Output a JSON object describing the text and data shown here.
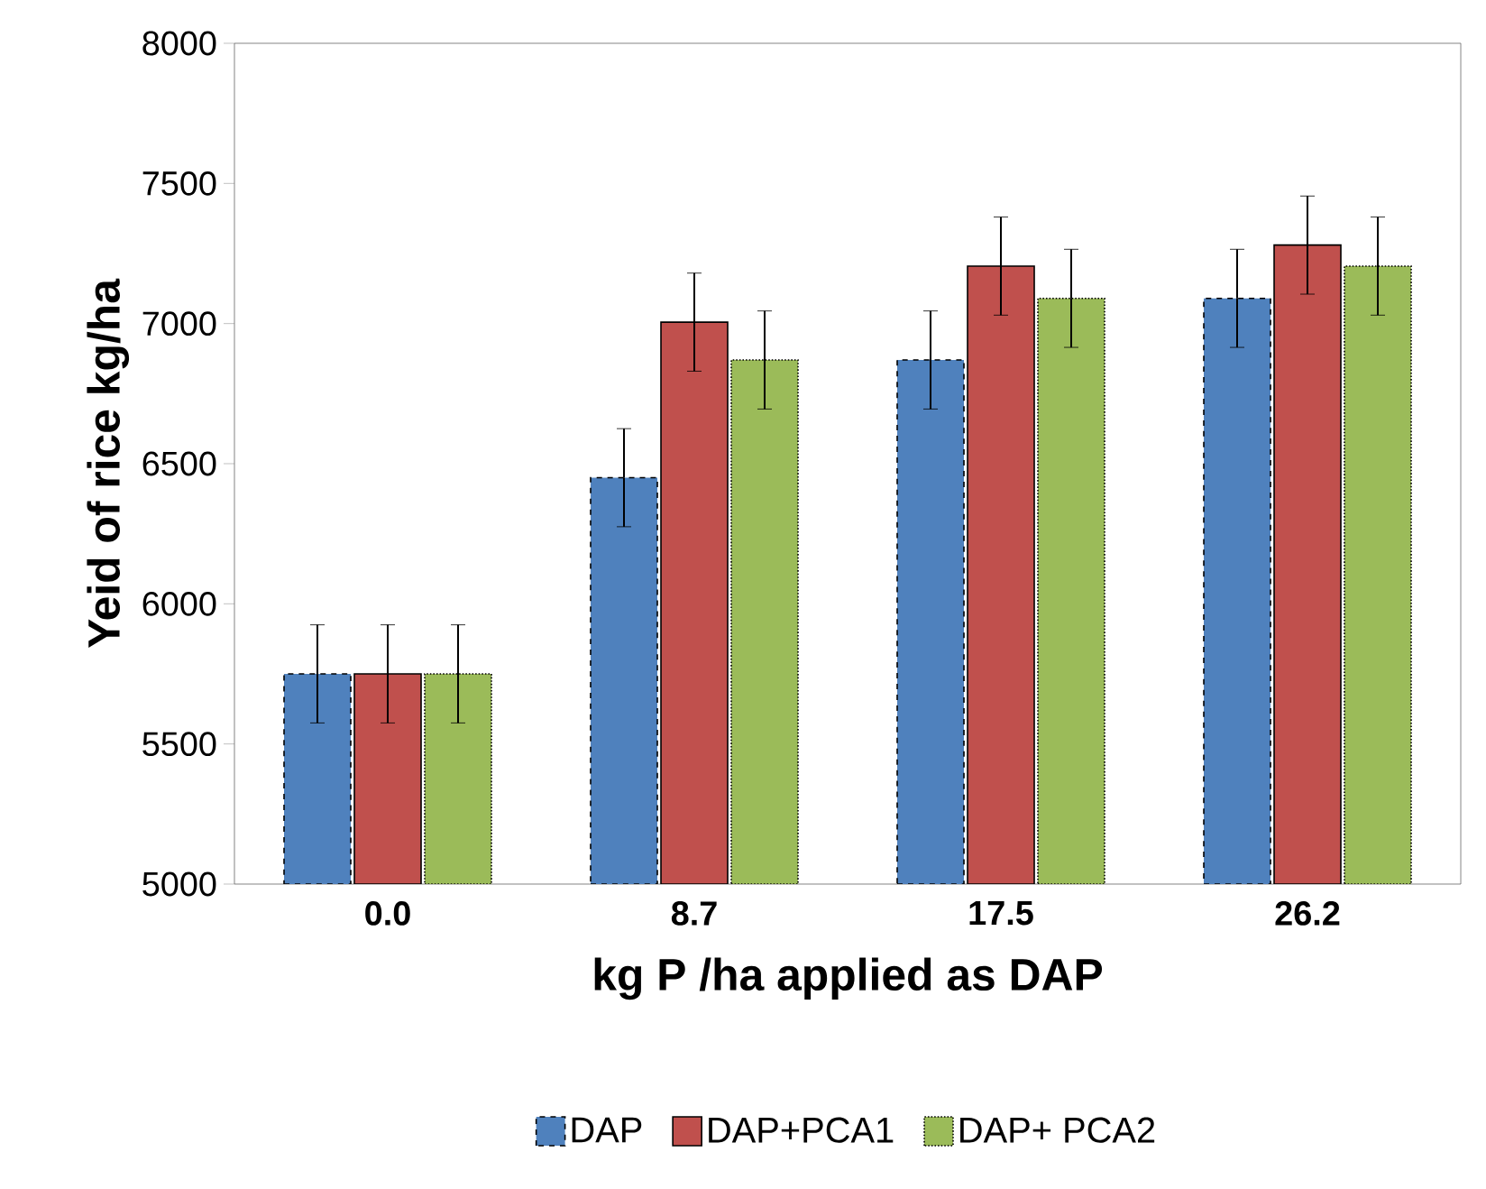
{
  "chart_data": {
    "type": "bar",
    "xlabel": "kg P /ha applied as DAP",
    "ylabel": "Yeid of rice kg/ha",
    "categories": [
      "0.0",
      "8.7",
      "17.5",
      "26.2"
    ],
    "series": [
      {
        "name": "DAP",
        "color": "#4f81bd",
        "line_style": "dashed",
        "values": [
          5750,
          6450,
          6870,
          7090
        ],
        "errors": [
          175,
          175,
          175,
          175
        ]
      },
      {
        "name": "DAP+PCA1",
        "color": "#c0504d",
        "line_style": "solid",
        "values": [
          5750,
          7005,
          7205,
          7280
        ],
        "errors": [
          175,
          175,
          175,
          175
        ]
      },
      {
        "name": "DAP+ PCA2",
        "color": "#9bbb59",
        "line_style": "dotted",
        "values": [
          5750,
          6870,
          7090,
          7205
        ],
        "errors": [
          175,
          175,
          175,
          175
        ]
      }
    ],
    "ylim": [
      5000,
      8000
    ],
    "yticks": [
      5000,
      5500,
      6000,
      6500,
      7000,
      7500,
      8000
    ],
    "grid": false,
    "legend": "bottom"
  }
}
